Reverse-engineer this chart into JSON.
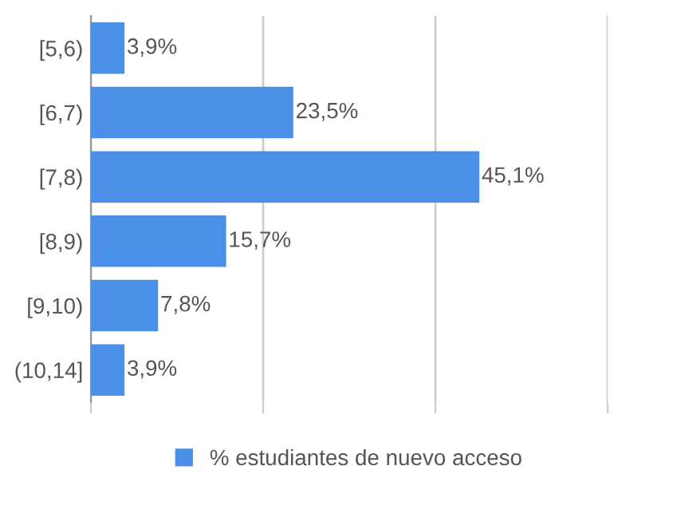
{
  "chart_data": {
    "type": "bar",
    "orientation": "horizontal",
    "categories": [
      "[5,6)",
      "[6,7)",
      "[7,8)",
      "[8,9)",
      "[9,10)",
      "(10,14]"
    ],
    "series": [
      {
        "name": "% estudiantes de nuevo acceso",
        "color": "#4a8fe8",
        "values": [
          3.9,
          23.5,
          45.1,
          15.7,
          7.8,
          3.9
        ],
        "value_labels": [
          "3,9%",
          "23,5%",
          "45,1%",
          "15,7%",
          "7,8%",
          "3,9%"
        ]
      }
    ],
    "xlim": [
      0,
      60
    ],
    "xticks": [
      {
        "value": 0,
        "label": null
      },
      {
        "value": 20,
        "label": null
      },
      {
        "value": 40,
        "label": null
      },
      {
        "value": 60,
        "label": null
      }
    ],
    "tick_labels": "y",
    "grid": "x",
    "legend": "bottom"
  }
}
